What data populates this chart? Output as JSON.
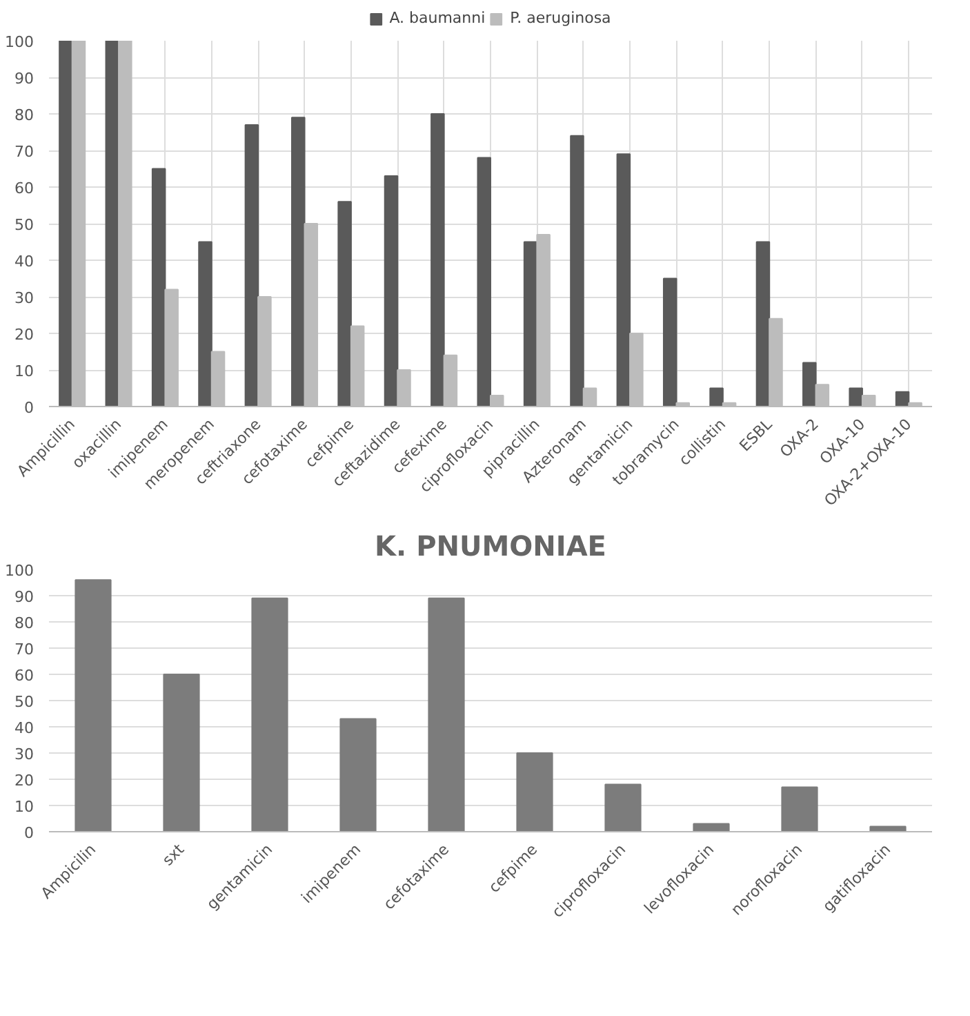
{
  "chart_data": [
    {
      "type": "bar",
      "categories": [
        "Ampicillin",
        "oxacillin",
        "imipenem",
        "meropenem",
        "ceftriaxone",
        "cefotaxime",
        "cefpime",
        "ceftazidime",
        "cefexime",
        "ciprofloxacin",
        "pipracillin",
        "Azteronam",
        "gentamicin",
        "tobramycin",
        "collistin",
        "ESBL",
        "OXA-2",
        "OXA-10",
        "OXA-2+OXA-10"
      ],
      "series": [
        {
          "name": "A. baumanni",
          "color": "#5a5a5a",
          "values": [
            100,
            100,
            65,
            45,
            77,
            79,
            56,
            63,
            80,
            68,
            45,
            74,
            69,
            35,
            5,
            45,
            12,
            5,
            4
          ]
        },
        {
          "name": "P. aeruginosa",
          "color": "#bcbcbc",
          "values": [
            100,
            100,
            32,
            15,
            30,
            50,
            22,
            10,
            14,
            3,
            47,
            5,
            20,
            1,
            1,
            24,
            6,
            3,
            1
          ]
        }
      ],
      "ylim": [
        0,
        100
      ],
      "yticks": [
        0,
        10,
        20,
        30,
        40,
        50,
        60,
        70,
        80,
        90,
        100
      ],
      "grid": true,
      "legend": "top"
    },
    {
      "type": "bar",
      "title": "K. PNUMONIAE",
      "categories": [
        "Ampicilin",
        "sxt",
        "gentamicin",
        "imipenem",
        "cefotaxime",
        "cefpime",
        "ciprofloxacin",
        "levofloxacin",
        "norofloxacin",
        "gatifloxacin"
      ],
      "values": [
        96,
        60,
        89,
        43,
        89,
        30,
        18,
        3,
        17,
        2
      ],
      "color": "#7c7c7c",
      "ylim": [
        0,
        100
      ],
      "yticks": [
        0,
        10,
        20,
        30,
        40,
        50,
        60,
        70,
        80,
        90,
        100
      ],
      "grid": "y"
    }
  ]
}
